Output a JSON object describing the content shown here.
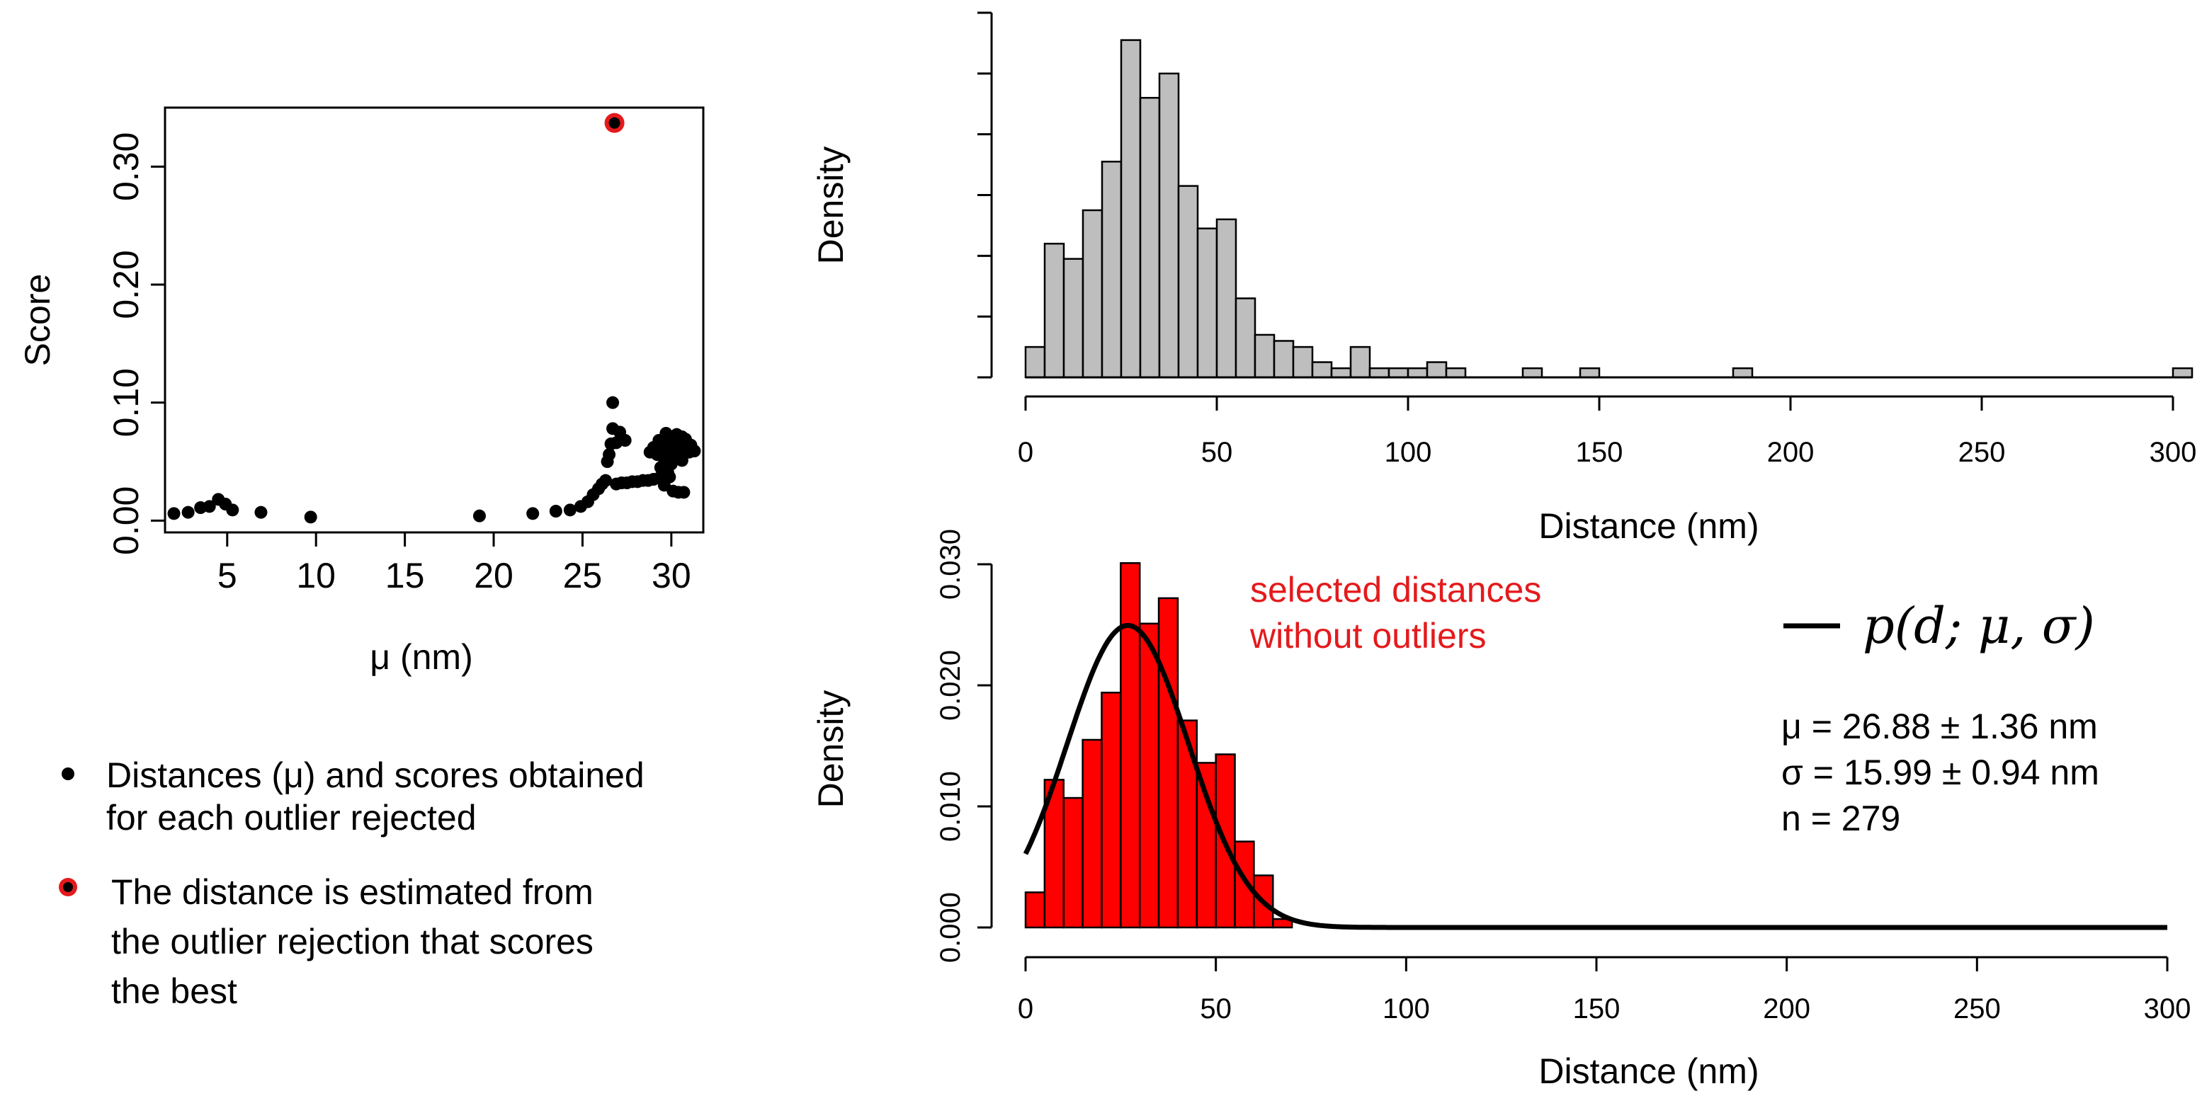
{
  "chart_data": [
    {
      "id": "score-plot",
      "type": "scatter",
      "title": "",
      "xlabel": "μ (nm)",
      "ylabel": "Score",
      "xlim": [
        1.5,
        31.8
      ],
      "ylim": [
        -0.01,
        0.35
      ],
      "xticks": [
        5,
        10,
        15,
        20,
        25,
        30
      ],
      "yticks": [
        0.0,
        0.1,
        0.2,
        0.3
      ],
      "ytick_labels": [
        "0.00",
        "0.10",
        "0.20",
        "0.30"
      ],
      "grid": false,
      "point_color": "#000000",
      "best_color": "#e41a1c",
      "best_point": {
        "x": 26.8,
        "y": 0.337
      },
      "points": [
        {
          "x": 2.0,
          "y": 0.006
        },
        {
          "x": 2.8,
          "y": 0.007
        },
        {
          "x": 3.5,
          "y": 0.011
        },
        {
          "x": 4.0,
          "y": 0.012
        },
        {
          "x": 4.5,
          "y": 0.018
        },
        {
          "x": 4.9,
          "y": 0.014
        },
        {
          "x": 5.3,
          "y": 0.009
        },
        {
          "x": 6.9,
          "y": 0.007
        },
        {
          "x": 9.7,
          "y": 0.003
        },
        {
          "x": 19.2,
          "y": 0.004
        },
        {
          "x": 22.2,
          "y": 0.006
        },
        {
          "x": 23.5,
          "y": 0.008
        },
        {
          "x": 24.3,
          "y": 0.009
        },
        {
          "x": 24.9,
          "y": 0.012
        },
        {
          "x": 25.3,
          "y": 0.016
        },
        {
          "x": 25.6,
          "y": 0.022
        },
        {
          "x": 25.9,
          "y": 0.027
        },
        {
          "x": 26.1,
          "y": 0.031
        },
        {
          "x": 26.3,
          "y": 0.034
        },
        {
          "x": 26.4,
          "y": 0.05
        },
        {
          "x": 26.5,
          "y": 0.056
        },
        {
          "x": 26.6,
          "y": 0.065
        },
        {
          "x": 26.7,
          "y": 0.1
        },
        {
          "x": 26.7,
          "y": 0.078
        },
        {
          "x": 26.9,
          "y": 0.066
        },
        {
          "x": 27.1,
          "y": 0.075
        },
        {
          "x": 27.4,
          "y": 0.068
        },
        {
          "x": 26.9,
          "y": 0.031
        },
        {
          "x": 27.2,
          "y": 0.032
        },
        {
          "x": 27.5,
          "y": 0.032
        },
        {
          "x": 27.8,
          "y": 0.033
        },
        {
          "x": 28.1,
          "y": 0.033
        },
        {
          "x": 28.4,
          "y": 0.034
        },
        {
          "x": 28.7,
          "y": 0.034
        },
        {
          "x": 29.0,
          "y": 0.035
        },
        {
          "x": 29.3,
          "y": 0.036
        },
        {
          "x": 29.6,
          "y": 0.036
        },
        {
          "x": 29.9,
          "y": 0.037
        },
        {
          "x": 28.8,
          "y": 0.058
        },
        {
          "x": 29.0,
          "y": 0.062
        },
        {
          "x": 29.2,
          "y": 0.056
        },
        {
          "x": 29.3,
          "y": 0.068
        },
        {
          "x": 29.5,
          "y": 0.061
        },
        {
          "x": 29.6,
          "y": 0.052
        },
        {
          "x": 29.7,
          "y": 0.074
        },
        {
          "x": 29.8,
          "y": 0.065
        },
        {
          "x": 29.9,
          "y": 0.058
        },
        {
          "x": 30.0,
          "y": 0.07
        },
        {
          "x": 30.1,
          "y": 0.062
        },
        {
          "x": 30.2,
          "y": 0.055
        },
        {
          "x": 30.3,
          "y": 0.073
        },
        {
          "x": 30.4,
          "y": 0.066
        },
        {
          "x": 30.5,
          "y": 0.06
        },
        {
          "x": 30.6,
          "y": 0.071
        },
        {
          "x": 30.7,
          "y": 0.064
        },
        {
          "x": 30.8,
          "y": 0.069
        },
        {
          "x": 30.9,
          "y": 0.062
        },
        {
          "x": 31.0,
          "y": 0.058
        },
        {
          "x": 31.1,
          "y": 0.064
        },
        {
          "x": 31.3,
          "y": 0.059
        },
        {
          "x": 29.4,
          "y": 0.045
        },
        {
          "x": 29.8,
          "y": 0.041
        },
        {
          "x": 30.1,
          "y": 0.025
        },
        {
          "x": 30.4,
          "y": 0.024
        },
        {
          "x": 30.7,
          "y": 0.024
        },
        {
          "x": 29.6,
          "y": 0.03
        },
        {
          "x": 30.0,
          "y": 0.048
        },
        {
          "x": 30.6,
          "y": 0.051
        }
      ]
    },
    {
      "id": "all-distances",
      "type": "bar",
      "subtype": "histogram",
      "title": "",
      "xlabel": "Distance (nm)",
      "ylabel": "Density",
      "xlim": [
        0,
        305
      ],
      "xticks": [
        0,
        50,
        100,
        150,
        200,
        250,
        300
      ],
      "yticks_count": 7,
      "ytick_labels_shown": false,
      "bin_width": 5,
      "bar_color": "#bebebe",
      "bins": [
        {
          "x0": 0,
          "x1": 5,
          "v": 5
        },
        {
          "x0": 5,
          "x1": 10,
          "v": 22
        },
        {
          "x0": 10,
          "x1": 15,
          "v": 19.5
        },
        {
          "x0": 15,
          "x1": 20,
          "v": 27.5
        },
        {
          "x0": 20,
          "x1": 25,
          "v": 35.5
        },
        {
          "x0": 25,
          "x1": 30,
          "v": 55.5
        },
        {
          "x0": 30,
          "x1": 35,
          "v": 46
        },
        {
          "x0": 35,
          "x1": 40,
          "v": 50
        },
        {
          "x0": 40,
          "x1": 45,
          "v": 31.5
        },
        {
          "x0": 45,
          "x1": 50,
          "v": 24.5
        },
        {
          "x0": 50,
          "x1": 55,
          "v": 26
        },
        {
          "x0": 55,
          "x1": 60,
          "v": 13
        },
        {
          "x0": 60,
          "x1": 65,
          "v": 7
        },
        {
          "x0": 65,
          "x1": 70,
          "v": 6
        },
        {
          "x0": 70,
          "x1": 75,
          "v": 5
        },
        {
          "x0": 75,
          "x1": 80,
          "v": 2.5
        },
        {
          "x0": 80,
          "x1": 85,
          "v": 1.5
        },
        {
          "x0": 85,
          "x1": 90,
          "v": 5
        },
        {
          "x0": 90,
          "x1": 95,
          "v": 1.5
        },
        {
          "x0": 95,
          "x1": 100,
          "v": 1.5
        },
        {
          "x0": 100,
          "x1": 105,
          "v": 1.5
        },
        {
          "x0": 105,
          "x1": 110,
          "v": 2.5
        },
        {
          "x0": 110,
          "x1": 115,
          "v": 1.5
        },
        {
          "x0": 130,
          "x1": 135,
          "v": 1.5
        },
        {
          "x0": 145,
          "x1": 150,
          "v": 1.5
        },
        {
          "x0": 185,
          "x1": 190,
          "v": 1.5
        },
        {
          "x0": 300,
          "x1": 305,
          "v": 1.5
        }
      ],
      "ylim": [
        0,
        60
      ]
    },
    {
      "id": "selected-distances",
      "type": "bar",
      "subtype": "histogram-with-fit",
      "title": "",
      "xlabel": "Distance  (nm)",
      "ylabel": "Density",
      "xlim": [
        0,
        300
      ],
      "ylim": [
        0,
        0.03
      ],
      "xticks": [
        0,
        50,
        100,
        150,
        200,
        250,
        300
      ],
      "yticks": [
        0.0,
        0.01,
        0.02,
        0.03
      ],
      "ytick_labels": [
        "0.000",
        "0.010",
        "0.020",
        "0.030"
      ],
      "bin_width": 5,
      "bar_color": "#ff0000",
      "bins": [
        {
          "x0": 0,
          "x1": 5,
          "v": 0.0029
        },
        {
          "x0": 5,
          "x1": 10,
          "v": 0.0122
        },
        {
          "x0": 10,
          "x1": 15,
          "v": 0.0107
        },
        {
          "x0": 15,
          "x1": 20,
          "v": 0.0155
        },
        {
          "x0": 20,
          "x1": 25,
          "v": 0.0194
        },
        {
          "x0": 25,
          "x1": 30,
          "v": 0.0301
        },
        {
          "x0": 30,
          "x1": 35,
          "v": 0.0251
        },
        {
          "x0": 35,
          "x1": 40,
          "v": 0.0272
        },
        {
          "x0": 40,
          "x1": 45,
          "v": 0.0171
        },
        {
          "x0": 45,
          "x1": 50,
          "v": 0.0136
        },
        {
          "x0": 50,
          "x1": 55,
          "v": 0.0143
        },
        {
          "x0": 55,
          "x1": 60,
          "v": 0.0071
        },
        {
          "x0": 60,
          "x1": 65,
          "v": 0.0043
        },
        {
          "x0": 65,
          "x1": 70,
          "v": 0.0007
        }
      ],
      "fit": {
        "mu": 26.88,
        "sigma": 15.99,
        "color": "#000000"
      },
      "annotation": {
        "line1": "selected distances",
        "line2": "without outliers",
        "color": "#e41a1c"
      },
      "legend": {
        "label": "p(d; μ, σ)",
        "placement": "top-right"
      },
      "stats": {
        "mu": "μ = 26.88 ± 1.36 nm",
        "sigma": "σ = 15.99 ± 0.94 nm",
        "n": "n = 279"
      }
    }
  ],
  "key": {
    "item1_line1": "Distances (μ) and scores obtained",
    "item1_line2": "for each outlier rejected",
    "item2_line1": "The distance is estimated from",
    "item2_line2": "the outlier rejection that scores",
    "item2_line3": "the best"
  }
}
